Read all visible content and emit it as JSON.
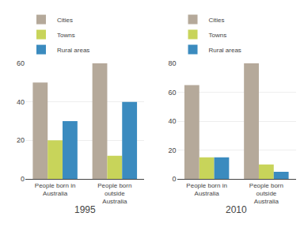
{
  "chart_data": [
    {
      "type": "bar",
      "title": "1995",
      "categories": [
        "People born in Australia",
        "People born outside Australia"
      ],
      "series": [
        {
          "name": "Cities",
          "color": "#b5a99a",
          "values": [
            50,
            60
          ]
        },
        {
          "name": "Towns",
          "color": "#c8d45a",
          "values": [
            20,
            12
          ]
        },
        {
          "name": "Rural areas",
          "color": "#3b8bbf",
          "values": [
            30,
            40
          ]
        }
      ],
      "ylim": [
        0,
        60
      ],
      "yticks": [
        0,
        20,
        40,
        60
      ],
      "grid": true,
      "legend": "upper left"
    },
    {
      "type": "bar",
      "title": "2010",
      "categories": [
        "People born in Australia",
        "People born outside Australia"
      ],
      "series": [
        {
          "name": "Cities",
          "color": "#b5a99a",
          "values": [
            65,
            80
          ]
        },
        {
          "name": "Towns",
          "color": "#c8d45a",
          "values": [
            15,
            10
          ]
        },
        {
          "name": "Rural areas",
          "color": "#3b8bbf",
          "values": [
            15,
            5
          ]
        }
      ],
      "ylim": [
        0,
        80
      ],
      "yticks": [
        0,
        20,
        40,
        60,
        80
      ],
      "grid": true,
      "legend": "upper left"
    }
  ]
}
